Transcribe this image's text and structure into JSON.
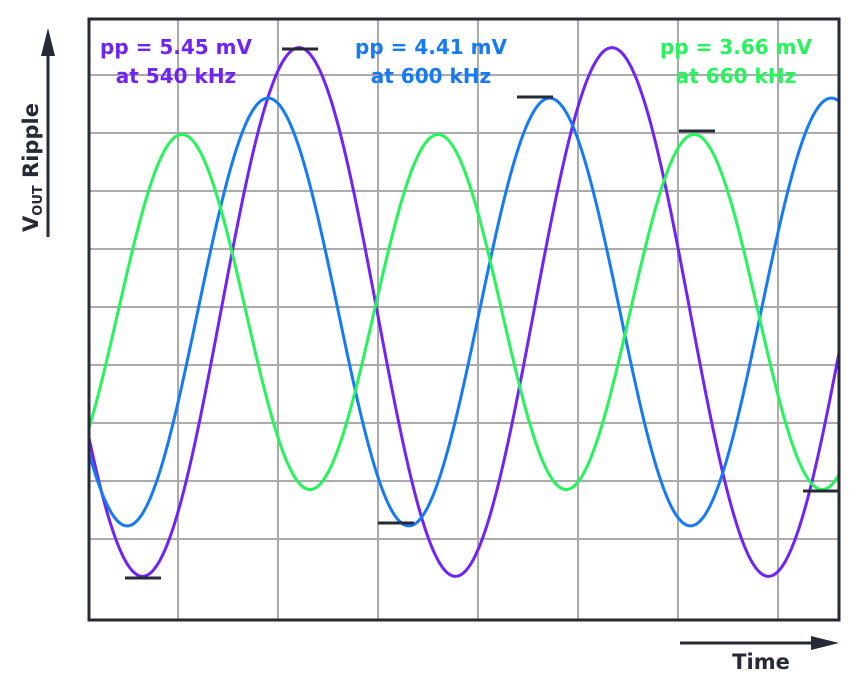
{
  "chart_data": {
    "type": "line",
    "title": "",
    "xlabel": "Time",
    "ylabel_main": "V",
    "ylabel_sub": "OUT",
    "ylabel_rest": " Ripple",
    "grid": true,
    "series": [
      {
        "name": "pp = 5.45 mV at 540 kHz",
        "line1": "pp = 5.45 mV",
        "line2": "at 540 kHz",
        "pp_mV": 5.45,
        "freq_kHz": 540,
        "color": "#7123f5"
      },
      {
        "name": "pp = 4.41 mV at 600 kHz",
        "line1": "pp = 4.41 mV",
        "line2": "at 600 kHz",
        "pp_mV": 4.41,
        "freq_kHz": 600,
        "color": "#147af5"
      },
      {
        "name": "pp = 3.66 mV at 660 kHz",
        "line1": "pp = 3.66 mV",
        "line2": "at 660 kHz",
        "pp_mV": 3.66,
        "freq_kHz": 660,
        "color": "#25f45a"
      }
    ],
    "colors": {
      "axis": "#262a36",
      "grid": "#ababab"
    }
  }
}
